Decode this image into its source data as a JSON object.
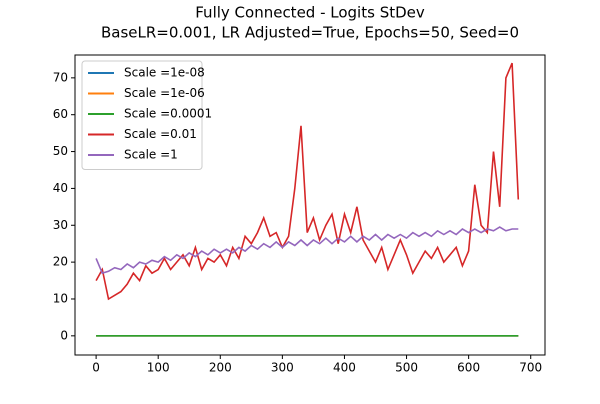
{
  "chart_data": {
    "type": "line",
    "title": "Fully Connected - Logits StDev",
    "subtitle": "BaseLR=0.001, LR Adjusted=True, Epochs=50, Seed=0",
    "x": [
      0,
      10,
      20,
      30,
      40,
      50,
      60,
      70,
      80,
      90,
      100,
      110,
      120,
      130,
      140,
      150,
      160,
      170,
      180,
      190,
      200,
      210,
      220,
      230,
      240,
      250,
      260,
      270,
      280,
      290,
      300,
      310,
      320,
      330,
      340,
      350,
      360,
      370,
      380,
      390,
      400,
      410,
      420,
      430,
      440,
      450,
      460,
      470,
      480,
      490,
      500,
      510,
      520,
      530,
      540,
      550,
      560,
      570,
      580,
      590,
      600,
      610,
      620,
      630,
      640,
      650,
      660,
      670,
      680
    ],
    "series": [
      {
        "name": "Scale =1e-08",
        "color": "#1f77b4",
        "values": [
          0,
          0,
          0,
          0,
          0,
          0,
          0,
          0,
          0,
          0,
          0,
          0,
          0,
          0,
          0,
          0,
          0,
          0,
          0,
          0,
          0,
          0,
          0,
          0,
          0,
          0,
          0,
          0,
          0,
          0,
          0,
          0,
          0,
          0,
          0,
          0,
          0,
          0,
          0,
          0,
          0,
          0,
          0,
          0,
          0,
          0,
          0,
          0,
          0,
          0,
          0,
          0,
          0,
          0,
          0,
          0,
          0,
          0,
          0,
          0,
          0,
          0,
          0,
          0,
          0,
          0,
          0,
          0,
          0
        ]
      },
      {
        "name": "Scale =1e-06",
        "color": "#ff7f0e",
        "values": [
          0,
          0,
          0,
          0,
          0,
          0,
          0,
          0,
          0,
          0,
          0,
          0,
          0,
          0,
          0,
          0,
          0,
          0,
          0,
          0,
          0,
          0,
          0,
          0,
          0,
          0,
          0,
          0,
          0,
          0,
          0,
          0,
          0,
          0,
          0,
          0,
          0,
          0,
          0,
          0,
          0,
          0,
          0,
          0,
          0,
          0,
          0,
          0,
          0,
          0,
          0,
          0,
          0,
          0,
          0,
          0,
          0,
          0,
          0,
          0,
          0,
          0,
          0,
          0,
          0,
          0,
          0,
          0,
          0
        ]
      },
      {
        "name": "Scale =0.0001",
        "color": "#2ca02c",
        "values": [
          0,
          0,
          0,
          0,
          0,
          0,
          0,
          0,
          0,
          0,
          0,
          0,
          0,
          0,
          0,
          0,
          0,
          0,
          0,
          0,
          0,
          0,
          0,
          0,
          0,
          0,
          0,
          0,
          0,
          0,
          0,
          0,
          0,
          0,
          0,
          0,
          0,
          0,
          0,
          0,
          0,
          0,
          0,
          0,
          0,
          0,
          0,
          0,
          0,
          0,
          0,
          0,
          0,
          0,
          0,
          0,
          0,
          0,
          0,
          0,
          0,
          0,
          0,
          0,
          0,
          0,
          0,
          0,
          0
        ]
      },
      {
        "name": "Scale =0.01",
        "color": "#d62728",
        "values": [
          15,
          18,
          10,
          11,
          12,
          14,
          17,
          15,
          19,
          17,
          18,
          21,
          18,
          20,
          22,
          19,
          24,
          18,
          21,
          20,
          22,
          19,
          24,
          21,
          27,
          25,
          28,
          32,
          27,
          28,
          24,
          27,
          40,
          57,
          28,
          32,
          26,
          30,
          33,
          25,
          33,
          28,
          35,
          26,
          23,
          20,
          24,
          18,
          22,
          26,
          22,
          17,
          20,
          23,
          21,
          24,
          20,
          22,
          24,
          19,
          23,
          41,
          30,
          28,
          50,
          35,
          70,
          74,
          37
        ]
      },
      {
        "name": "Scale =1",
        "color": "#9467bd",
        "values": [
          21,
          17,
          17.5,
          18.5,
          18,
          19.5,
          18.5,
          20,
          19.5,
          20.5,
          20,
          21.5,
          20.5,
          22,
          21,
          22.5,
          21.5,
          23,
          22,
          23.5,
          22.5,
          23.5,
          22.5,
          24,
          23,
          24.5,
          23.5,
          25,
          24,
          25.5,
          24,
          25.5,
          24.5,
          26,
          24.5,
          26,
          25,
          26.5,
          25,
          26.5,
          25.5,
          27,
          25.5,
          27,
          26,
          27.5,
          26,
          27.5,
          26.5,
          27.5,
          26.5,
          28,
          27,
          28,
          27,
          28.5,
          27.5,
          28.5,
          27.5,
          29,
          28,
          29,
          28,
          29,
          28.5,
          29.5,
          28.5,
          29,
          29
        ]
      }
    ],
    "xlim": [
      -34,
      723
    ],
    "xticks": [
      0,
      100,
      200,
      300,
      400,
      500,
      600,
      700
    ],
    "ylim": [
      -5.2,
      76.2
    ],
    "yticks": [
      0,
      10,
      20,
      30,
      40,
      50,
      60,
      70
    ],
    "legend": "upper left",
    "grid": false
  }
}
